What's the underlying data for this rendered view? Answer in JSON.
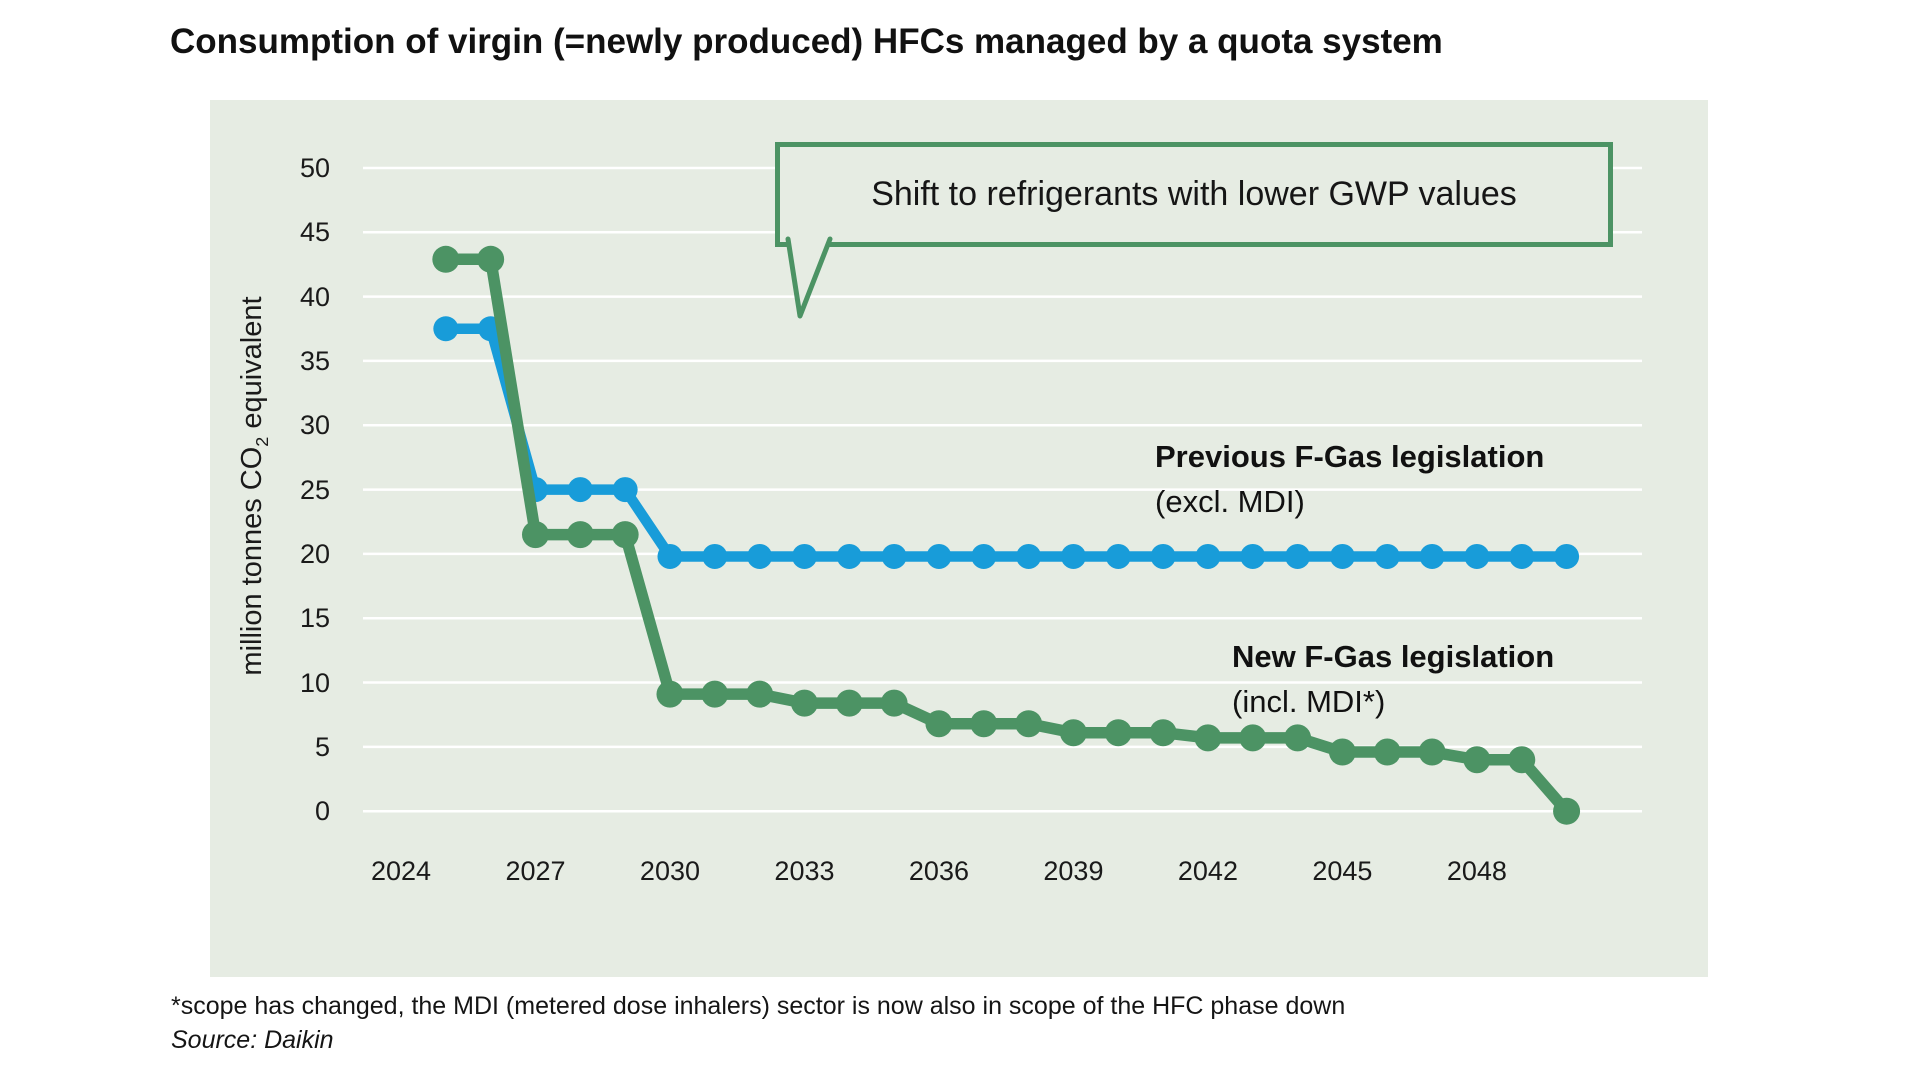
{
  "title": "Consumption of virgin (=newly produced) HFCs managed by a quota system",
  "callout": {
    "text": "Shift to refrigerants with lower GWP values"
  },
  "legend": {
    "previous": {
      "line1": "Previous F-Gas legislation",
      "line2": "(excl. MDI)"
    },
    "new": {
      "line1": "New F-Gas legislation",
      "line2": "(incl. MDI*)"
    }
  },
  "y_axis": {
    "title_pre": "million tonnes CO",
    "title_sub": "2",
    "title_post": " equivalent"
  },
  "footnote": "*scope has changed, the MDI (metered dose inhalers) sector is now also in scope of the HFC phase down",
  "source": "Source: Daikin",
  "colors": {
    "previous_line": "#189cd9",
    "new_line": "#4c9364",
    "plot_bg": "#e6ece3",
    "gridline": "#ffffff",
    "callout_border": "#4c9364",
    "text": "#111111"
  },
  "chart_data": {
    "type": "line",
    "title": "Consumption of virgin (=newly produced) HFCs managed by a quota system",
    "xlabel": "",
    "ylabel": "million tonnes CO2 equivalent",
    "ylim": [
      0,
      50
    ],
    "yticks": [
      0,
      5,
      10,
      15,
      20,
      25,
      30,
      35,
      40,
      45,
      50
    ],
    "xticks": [
      2024,
      2027,
      2030,
      2033,
      2036,
      2039,
      2042,
      2045,
      2048
    ],
    "x_range": [
      2024,
      2050
    ],
    "grid": "horizontal-white",
    "legend_position": "inline-labels",
    "annotation": "Shift to refrigerants with lower GWP values",
    "series": [
      {
        "name": "Previous F-Gas legislation (excl. MDI)",
        "color": "#189cd9",
        "x": [
          2025,
          2026,
          2027,
          2028,
          2029,
          2030,
          2031,
          2032,
          2033,
          2034,
          2035,
          2036,
          2037,
          2038,
          2039,
          2040,
          2041,
          2042,
          2043,
          2044,
          2045,
          2046,
          2047,
          2048,
          2049,
          2050
        ],
        "values": [
          37.5,
          37.5,
          25,
          25,
          25,
          19.8,
          19.8,
          19.8,
          19.8,
          19.8,
          19.8,
          19.8,
          19.8,
          19.8,
          19.8,
          19.8,
          19.8,
          19.8,
          19.8,
          19.8,
          19.8,
          19.8,
          19.8,
          19.8,
          19.8,
          19.8
        ]
      },
      {
        "name": "New F-Gas legislation (incl. MDI*)",
        "color": "#4c9364",
        "x": [
          2025,
          2026,
          2027,
          2028,
          2029,
          2030,
          2031,
          2032,
          2033,
          2034,
          2035,
          2036,
          2037,
          2038,
          2039,
          2040,
          2041,
          2042,
          2043,
          2044,
          2045,
          2046,
          2047,
          2048,
          2049,
          2050
        ],
        "values": [
          42.9,
          42.9,
          21.5,
          21.5,
          21.5,
          9.1,
          9.1,
          9.1,
          8.4,
          8.4,
          8.4,
          6.8,
          6.8,
          6.8,
          6.1,
          6.1,
          6.1,
          5.7,
          5.7,
          5.7,
          4.6,
          4.6,
          4.6,
          4.0,
          4.0,
          0
        ]
      }
    ]
  }
}
